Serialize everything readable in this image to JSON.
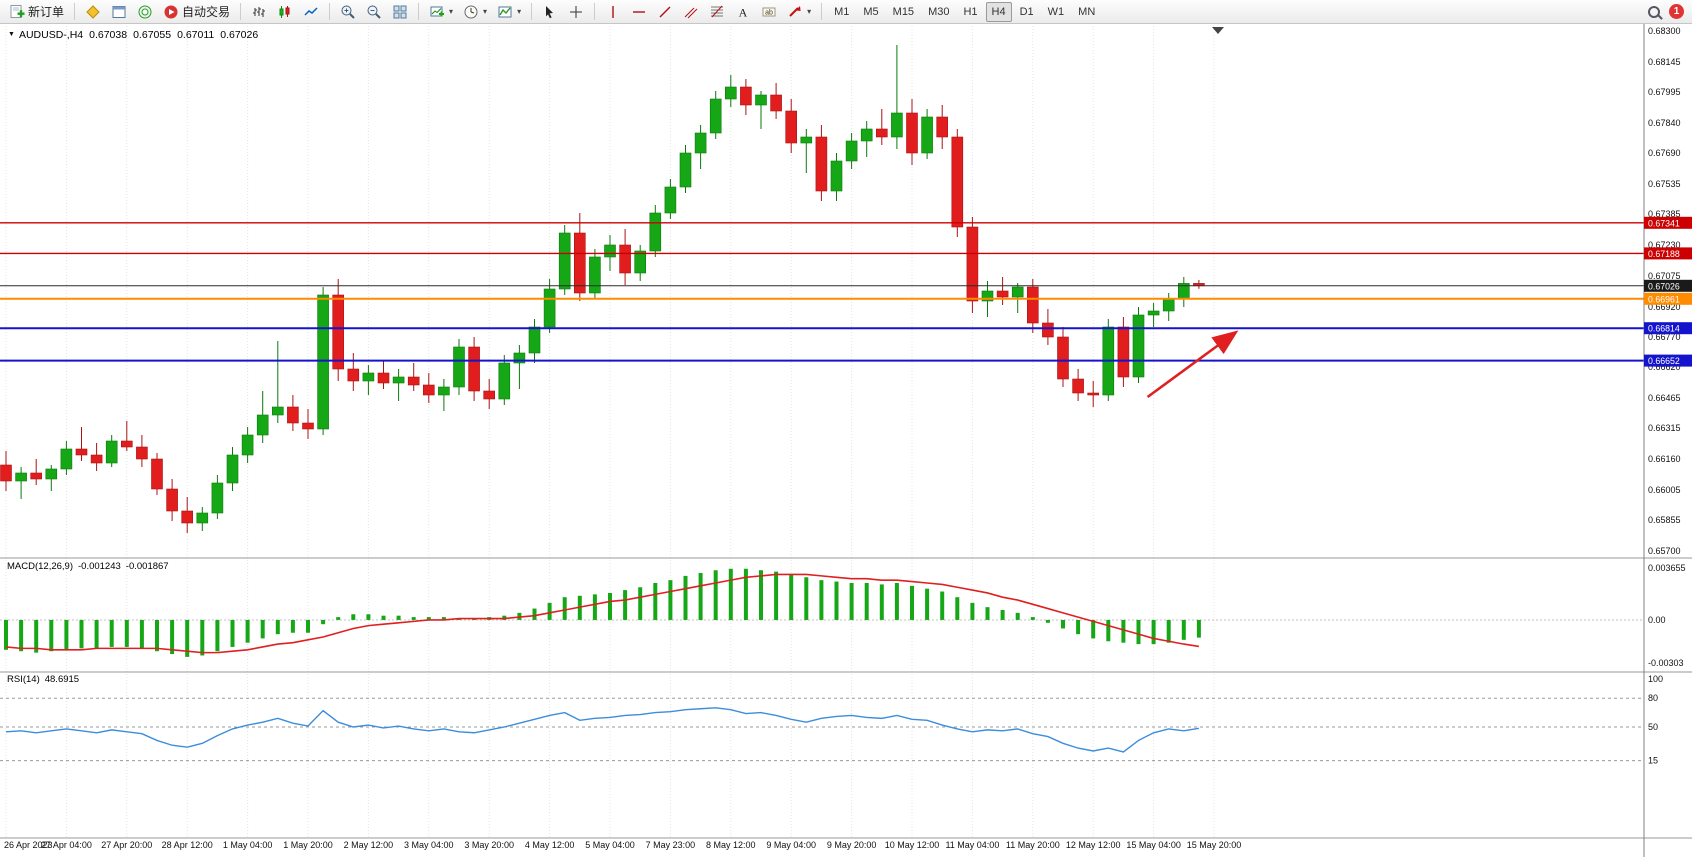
{
  "toolbar": {
    "new_order_label": "新订单",
    "autotrading_label": "自动交易",
    "timeframes": [
      "M1",
      "M5",
      "M15",
      "M30",
      "H1",
      "H4",
      "D1",
      "W1",
      "MN"
    ],
    "active_timeframe": "H4",
    "notification_count": "1"
  },
  "chart_header": {
    "title": "AUDUSD-,H4",
    "open": "0.67038",
    "high": "0.67055",
    "low": "0.67011",
    "close": "0.67026"
  },
  "macd_panel": {
    "label": "MACD(12,26,9)",
    "value": "-0.001243",
    "signal": "-0.001867"
  },
  "rsi_panel": {
    "label": "RSI(14)",
    "value": "48.6915"
  },
  "chart_data": {
    "type": "candlestick",
    "symbol": "AUDUSD-",
    "timeframe": "H4",
    "price_range": [
      0.657,
      0.683
    ],
    "price_axis": [
      "0.68300",
      "0.68145",
      "0.67995",
      "0.67840",
      "0.67690",
      "0.67535",
      "0.67385",
      "0.67230",
      "0.67075",
      "0.66920",
      "0.66770",
      "0.66620",
      "0.66465",
      "0.66315",
      "0.66160",
      "0.66005",
      "0.65855",
      "0.65700"
    ],
    "bars_per_label": 4,
    "time_labels": [
      "26 Apr 2023",
      "27 Apr 04:00",
      "27 Apr 20:00",
      "28 Apr 12:00",
      "1 May 04:00",
      "1 May 20:00",
      "2 May 12:00",
      "3 May 04:00",
      "3 May 20:00",
      "4 May 12:00",
      "5 May 04:00",
      "7 May 23:00",
      "8 May 12:00",
      "9 May 04:00",
      "9 May 20:00",
      "10 May 12:00",
      "11 May 04:00",
      "11 May 20:00",
      "12 May 12:00",
      "15 May 04:00",
      "15 May 20:00"
    ],
    "ohlc": [
      [
        0.6613,
        0.662,
        0.66,
        0.6605
      ],
      [
        0.6605,
        0.6612,
        0.6596,
        0.6609
      ],
      [
        0.6609,
        0.6616,
        0.6603,
        0.6606
      ],
      [
        0.6606,
        0.6613,
        0.66,
        0.6611
      ],
      [
        0.6611,
        0.6625,
        0.6608,
        0.6621
      ],
      [
        0.6621,
        0.6632,
        0.6615,
        0.6618
      ],
      [
        0.6618,
        0.6624,
        0.661,
        0.6614
      ],
      [
        0.6614,
        0.6628,
        0.6612,
        0.6625
      ],
      [
        0.6625,
        0.6635,
        0.662,
        0.6622
      ],
      [
        0.6622,
        0.6628,
        0.6612,
        0.6616
      ],
      [
        0.6616,
        0.6619,
        0.6598,
        0.6601
      ],
      [
        0.6601,
        0.6606,
        0.6585,
        0.659
      ],
      [
        0.659,
        0.6597,
        0.6579,
        0.6584
      ],
      [
        0.6584,
        0.6592,
        0.658,
        0.6589
      ],
      [
        0.6589,
        0.6608,
        0.6586,
        0.6604
      ],
      [
        0.6604,
        0.6622,
        0.66,
        0.6618
      ],
      [
        0.6618,
        0.6632,
        0.6614,
        0.6628
      ],
      [
        0.6628,
        0.665,
        0.6624,
        0.6638
      ],
      [
        0.6638,
        0.6675,
        0.6634,
        0.6642
      ],
      [
        0.6642,
        0.6648,
        0.663,
        0.6634
      ],
      [
        0.6634,
        0.6641,
        0.6626,
        0.6631
      ],
      [
        0.6631,
        0.6702,
        0.6628,
        0.6698
      ],
      [
        0.6698,
        0.6706,
        0.6655,
        0.6661
      ],
      [
        0.6661,
        0.6669,
        0.665,
        0.6655
      ],
      [
        0.6655,
        0.6663,
        0.6648,
        0.6659
      ],
      [
        0.6659,
        0.6665,
        0.6651,
        0.6654
      ],
      [
        0.6654,
        0.6661,
        0.6645,
        0.6657
      ],
      [
        0.6657,
        0.6664,
        0.665,
        0.6653
      ],
      [
        0.6653,
        0.6659,
        0.6644,
        0.6648
      ],
      [
        0.6648,
        0.6656,
        0.664,
        0.6652
      ],
      [
        0.6652,
        0.6676,
        0.6648,
        0.6672
      ],
      [
        0.6672,
        0.6677,
        0.6645,
        0.665
      ],
      [
        0.665,
        0.6656,
        0.6641,
        0.6646
      ],
      [
        0.6646,
        0.6668,
        0.6643,
        0.6664
      ],
      [
        0.6664,
        0.6673,
        0.6651,
        0.6669
      ],
      [
        0.6669,
        0.6686,
        0.6664,
        0.6682
      ],
      [
        0.6682,
        0.6706,
        0.6679,
        0.6701
      ],
      [
        0.6701,
        0.6733,
        0.6698,
        0.6729
      ],
      [
        0.6729,
        0.6739,
        0.6695,
        0.6699
      ],
      [
        0.6699,
        0.6721,
        0.6696,
        0.6717
      ],
      [
        0.6717,
        0.6728,
        0.671,
        0.6723
      ],
      [
        0.6723,
        0.6731,
        0.6703,
        0.6709
      ],
      [
        0.6709,
        0.6723,
        0.6705,
        0.672
      ],
      [
        0.672,
        0.6743,
        0.6717,
        0.6739
      ],
      [
        0.6739,
        0.6756,
        0.6736,
        0.6752
      ],
      [
        0.6752,
        0.6773,
        0.6749,
        0.6769
      ],
      [
        0.6769,
        0.6783,
        0.6761,
        0.6779
      ],
      [
        0.6779,
        0.68,
        0.6776,
        0.6796
      ],
      [
        0.6796,
        0.6808,
        0.6792,
        0.6802
      ],
      [
        0.6802,
        0.6806,
        0.6788,
        0.6793
      ],
      [
        0.6793,
        0.68,
        0.6781,
        0.6798
      ],
      [
        0.6798,
        0.6804,
        0.6786,
        0.679
      ],
      [
        0.679,
        0.6796,
        0.6769,
        0.6774
      ],
      [
        0.6774,
        0.6781,
        0.6759,
        0.6777
      ],
      [
        0.6777,
        0.6783,
        0.6745,
        0.675
      ],
      [
        0.675,
        0.6769,
        0.6745,
        0.6765
      ],
      [
        0.6765,
        0.6779,
        0.6761,
        0.6775
      ],
      [
        0.6775,
        0.6785,
        0.6767,
        0.6781
      ],
      [
        0.6781,
        0.6791,
        0.6773,
        0.6777
      ],
      [
        0.6777,
        0.6823,
        0.6771,
        0.6789
      ],
      [
        0.6789,
        0.6796,
        0.6763,
        0.6769
      ],
      [
        0.6769,
        0.6791,
        0.6766,
        0.6787
      ],
      [
        0.6787,
        0.6793,
        0.6771,
        0.6777
      ],
      [
        0.6777,
        0.6781,
        0.6727,
        0.6732
      ],
      [
        0.6732,
        0.6737,
        0.6689,
        0.6695
      ],
      [
        0.6695,
        0.6705,
        0.6687,
        0.67
      ],
      [
        0.67,
        0.6707,
        0.6693,
        0.6697
      ],
      [
        0.6697,
        0.6704,
        0.6689,
        0.6702
      ],
      [
        0.6702,
        0.6706,
        0.6679,
        0.6684
      ],
      [
        0.6684,
        0.6691,
        0.6673,
        0.6677
      ],
      [
        0.6677,
        0.6682,
        0.6652,
        0.6656
      ],
      [
        0.6656,
        0.6661,
        0.6645,
        0.6649
      ],
      [
        0.6649,
        0.6655,
        0.6642,
        0.6648
      ],
      [
        0.6648,
        0.6686,
        0.6645,
        0.6682
      ],
      [
        0.6682,
        0.6687,
        0.6652,
        0.6657
      ],
      [
        0.6657,
        0.6692,
        0.6654,
        0.6688
      ],
      [
        0.6688,
        0.6694,
        0.6682,
        0.669
      ],
      [
        0.669,
        0.6699,
        0.6685,
        0.6696
      ],
      [
        0.6696,
        0.6707,
        0.6692,
        0.67038
      ],
      [
        0.67038,
        0.67055,
        0.67011,
        0.67026
      ]
    ],
    "hlines": [
      {
        "price": 0.67341,
        "label": "0.67341",
        "color": "#cc0000",
        "width": 1.4
      },
      {
        "price": 0.67188,
        "label": "0.67188",
        "color": "#cc0000",
        "width": 1.4
      },
      {
        "price": 0.66961,
        "label": "0.66961",
        "color": "#ff8c00",
        "width": 2
      },
      {
        "price": 0.66814,
        "label": "0.66814",
        "color": "#1414cc",
        "width": 2
      },
      {
        "price": 0.66652,
        "label": "0.66652",
        "color": "#1414cc",
        "width": 2
      }
    ],
    "current_price": 0.67026,
    "current_price_label": "0.67026",
    "macd": {
      "range": [
        -0.00303,
        0.003655
      ],
      "axis_labels": [
        {
          "text": "0.003655",
          "value": 0.003655
        },
        {
          "text": "0.00",
          "value": 0
        },
        {
          "text": "-0.00303",
          "value": -0.00303
        }
      ],
      "histogram": [
        -0.0021,
        -0.0022,
        -0.0023,
        -0.0022,
        -0.0021,
        -0.002,
        -0.002,
        -0.0019,
        -0.0019,
        -0.002,
        -0.0022,
        -0.0024,
        -0.0026,
        -0.0025,
        -0.0022,
        -0.0019,
        -0.0016,
        -0.0013,
        -0.001,
        -0.0009,
        -0.0009,
        -0.0003,
        0.0002,
        0.0004,
        0.0004,
        0.0003,
        0.0003,
        0.0002,
        0.0002,
        0.0002,
        0.0001,
        0.0001,
        0.0002,
        0.0003,
        0.0005,
        0.0008,
        0.0012,
        0.0016,
        0.0017,
        0.0018,
        0.0019,
        0.0021,
        0.0023,
        0.0026,
        0.0028,
        0.0031,
        0.0033,
        0.0035,
        0.0036,
        0.0036,
        0.0035,
        0.0034,
        0.0032,
        0.003,
        0.0028,
        0.0027,
        0.0026,
        0.0026,
        0.0025,
        0.0026,
        0.0024,
        0.0022,
        0.002,
        0.0016,
        0.0012,
        0.0009,
        0.0007,
        0.0005,
        0.0002,
        -0.0002,
        -0.0006,
        -0.001,
        -0.0013,
        -0.0015,
        -0.0016,
        -0.0017,
        -0.0017,
        -0.0016,
        -0.0014,
        -0.001243
      ],
      "signal": [
        -0.0019,
        -0.002,
        -0.002,
        -0.0021,
        -0.0021,
        -0.0021,
        -0.002,
        -0.002,
        -0.002,
        -0.002,
        -0.002,
        -0.0021,
        -0.0022,
        -0.0023,
        -0.0023,
        -0.0022,
        -0.0021,
        -0.0019,
        -0.0017,
        -0.0016,
        -0.0014,
        -0.0012,
        -0.0009,
        -0.0006,
        -0.0004,
        -0.0003,
        -0.0002,
        -0.0001,
        0.0,
        0.0,
        0.0001,
        0.0001,
        0.0001,
        0.0001,
        0.0002,
        0.0003,
        0.0005,
        0.0007,
        0.0009,
        0.0011,
        0.0013,
        0.0014,
        0.0016,
        0.0018,
        0.002,
        0.0022,
        0.0024,
        0.0026,
        0.0028,
        0.003,
        0.0031,
        0.0032,
        0.0032,
        0.0032,
        0.0031,
        0.003,
        0.0029,
        0.0029,
        0.0028,
        0.0028,
        0.0027,
        0.0026,
        0.0025,
        0.0023,
        0.0021,
        0.0019,
        0.0016,
        0.0014,
        0.0011,
        0.0008,
        0.0005,
        0.0002,
        -0.0001,
        -0.0004,
        -0.0007,
        -0.001,
        -0.0013,
        -0.0015,
        -0.0017,
        -0.001867
      ]
    },
    "rsi": {
      "axis_labels": [
        {
          "text": "100",
          "value": 100
        },
        {
          "text": "80",
          "value": 80
        },
        {
          "text": "50",
          "value": 50
        },
        {
          "text": "15",
          "value": 15
        }
      ],
      "levels": [
        80,
        50,
        15
      ],
      "values": [
        45,
        46,
        44,
        46,
        48,
        46,
        44,
        47,
        45,
        43,
        36,
        31,
        29,
        33,
        41,
        48,
        52,
        55,
        59,
        54,
        51,
        67,
        55,
        50,
        52,
        49,
        51,
        48,
        46,
        48,
        45,
        44,
        47,
        50,
        54,
        58,
        62,
        65,
        57,
        59,
        60,
        62,
        63,
        65,
        66,
        68,
        69,
        70,
        68,
        64,
        65,
        62,
        58,
        55,
        59,
        61,
        62,
        60,
        59,
        62,
        58,
        57,
        52,
        48,
        45,
        47,
        46,
        48,
        43,
        40,
        33,
        28,
        25,
        28,
        24,
        36,
        44,
        48,
        46,
        48.69
      ]
    },
    "trend_arrow": {
      "from_bar": 75.6,
      "from_price": 0.6647,
      "to_bar": 81.2,
      "to_price": 0.6678,
      "color": "#e02020"
    }
  }
}
